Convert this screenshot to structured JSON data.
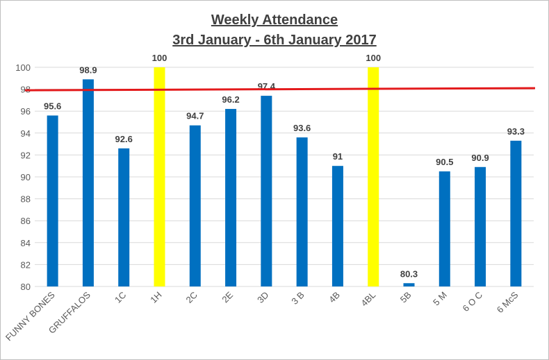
{
  "chart_data": {
    "type": "bar",
    "title": "Weekly Attendance",
    "subtitle": "3rd January - 6th January 2017",
    "categories": [
      "FUNNY BONES",
      "GRUFFALOS",
      "1C",
      "1H",
      "2C",
      "2E",
      "3D",
      "3 B",
      "4B",
      "4BL",
      "5B",
      "5 M",
      "6 O C",
      "6 McS"
    ],
    "values": [
      95.6,
      98.9,
      92.6,
      100,
      94.7,
      96.2,
      97.4,
      93.6,
      91,
      100,
      80.3,
      90.5,
      90.9,
      93.3
    ],
    "data_labels": [
      "95.6",
      "98.9",
      "92.6",
      "100",
      "94.7",
      "96.2",
      "97.4",
      "93.6",
      "91",
      "100",
      "80.3",
      "90.5",
      "90.9",
      "93.3"
    ],
    "highlighted_categories": [
      "1H",
      "4BL"
    ],
    "ylim": [
      80,
      100
    ],
    "yticks": [
      "80",
      "82",
      "84",
      "86",
      "88",
      "90",
      "92",
      "94",
      "96",
      "98",
      "100"
    ],
    "grid": true,
    "reference_line": {
      "value": 98
    },
    "colors": {
      "bar": "#0070c0",
      "highlight": "#ffff00",
      "reference_line": "#e31a1c",
      "grid": "#d9d9d9",
      "label": "#404040",
      "axis_text": "#595959"
    }
  }
}
